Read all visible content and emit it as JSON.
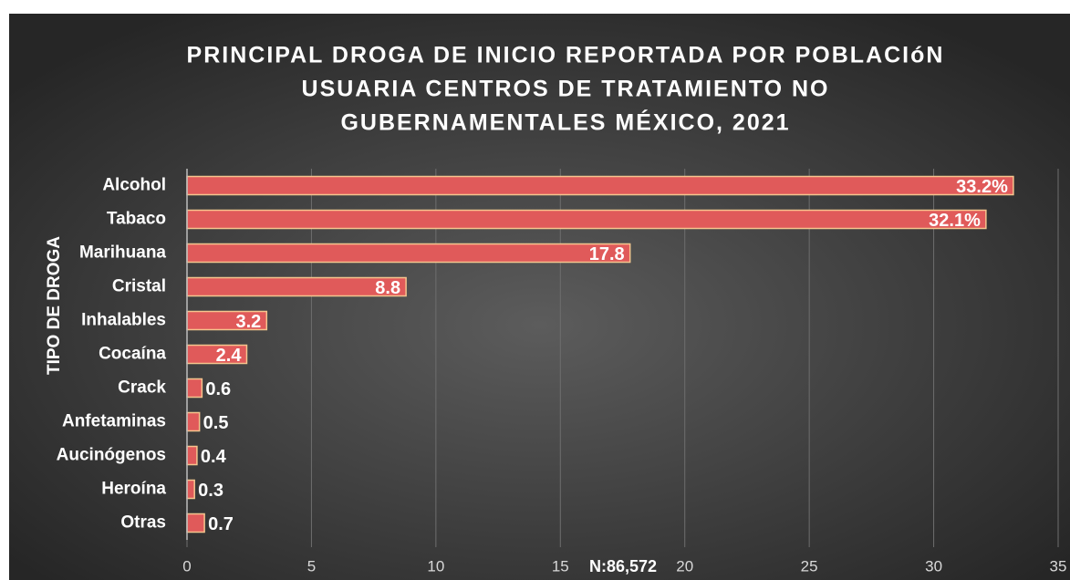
{
  "chart_data": {
    "type": "hbar",
    "title": [
      "PRINCIPAL DROGA DE INICIO REPORTADA POR POBLACIóN",
      "USUARIA CENTROS DE TRATAMIENTO NO",
      "GUBERNAMENTALES MÉXICO, 2021"
    ],
    "y_label": "TIPO DE DROGA",
    "annotation": "N:86,572",
    "categories": [
      "Alcohol",
      "Tabaco",
      "Marihuana",
      "Cristal",
      "Inhalables",
      "Cocaína",
      "Crack",
      "Anfetaminas",
      "Aucinógenos",
      "Heroína",
      "Otras"
    ],
    "values": [
      33.2,
      32.1,
      17.8,
      8.8,
      3.2,
      2.4,
      0.6,
      0.5,
      0.4,
      0.3,
      0.7
    ],
    "value_labels": [
      "33.2%",
      "32.1%",
      "17.8",
      "8.8",
      "3.2",
      "2.4",
      "0.6",
      "0.5",
      "0.4",
      "0.3",
      "0.7"
    ],
    "color": "#e05a5a",
    "xlim": [
      0,
      35
    ],
    "xticks": [
      0,
      5,
      10,
      15,
      20,
      25,
      30,
      35
    ],
    "grid": true
  }
}
